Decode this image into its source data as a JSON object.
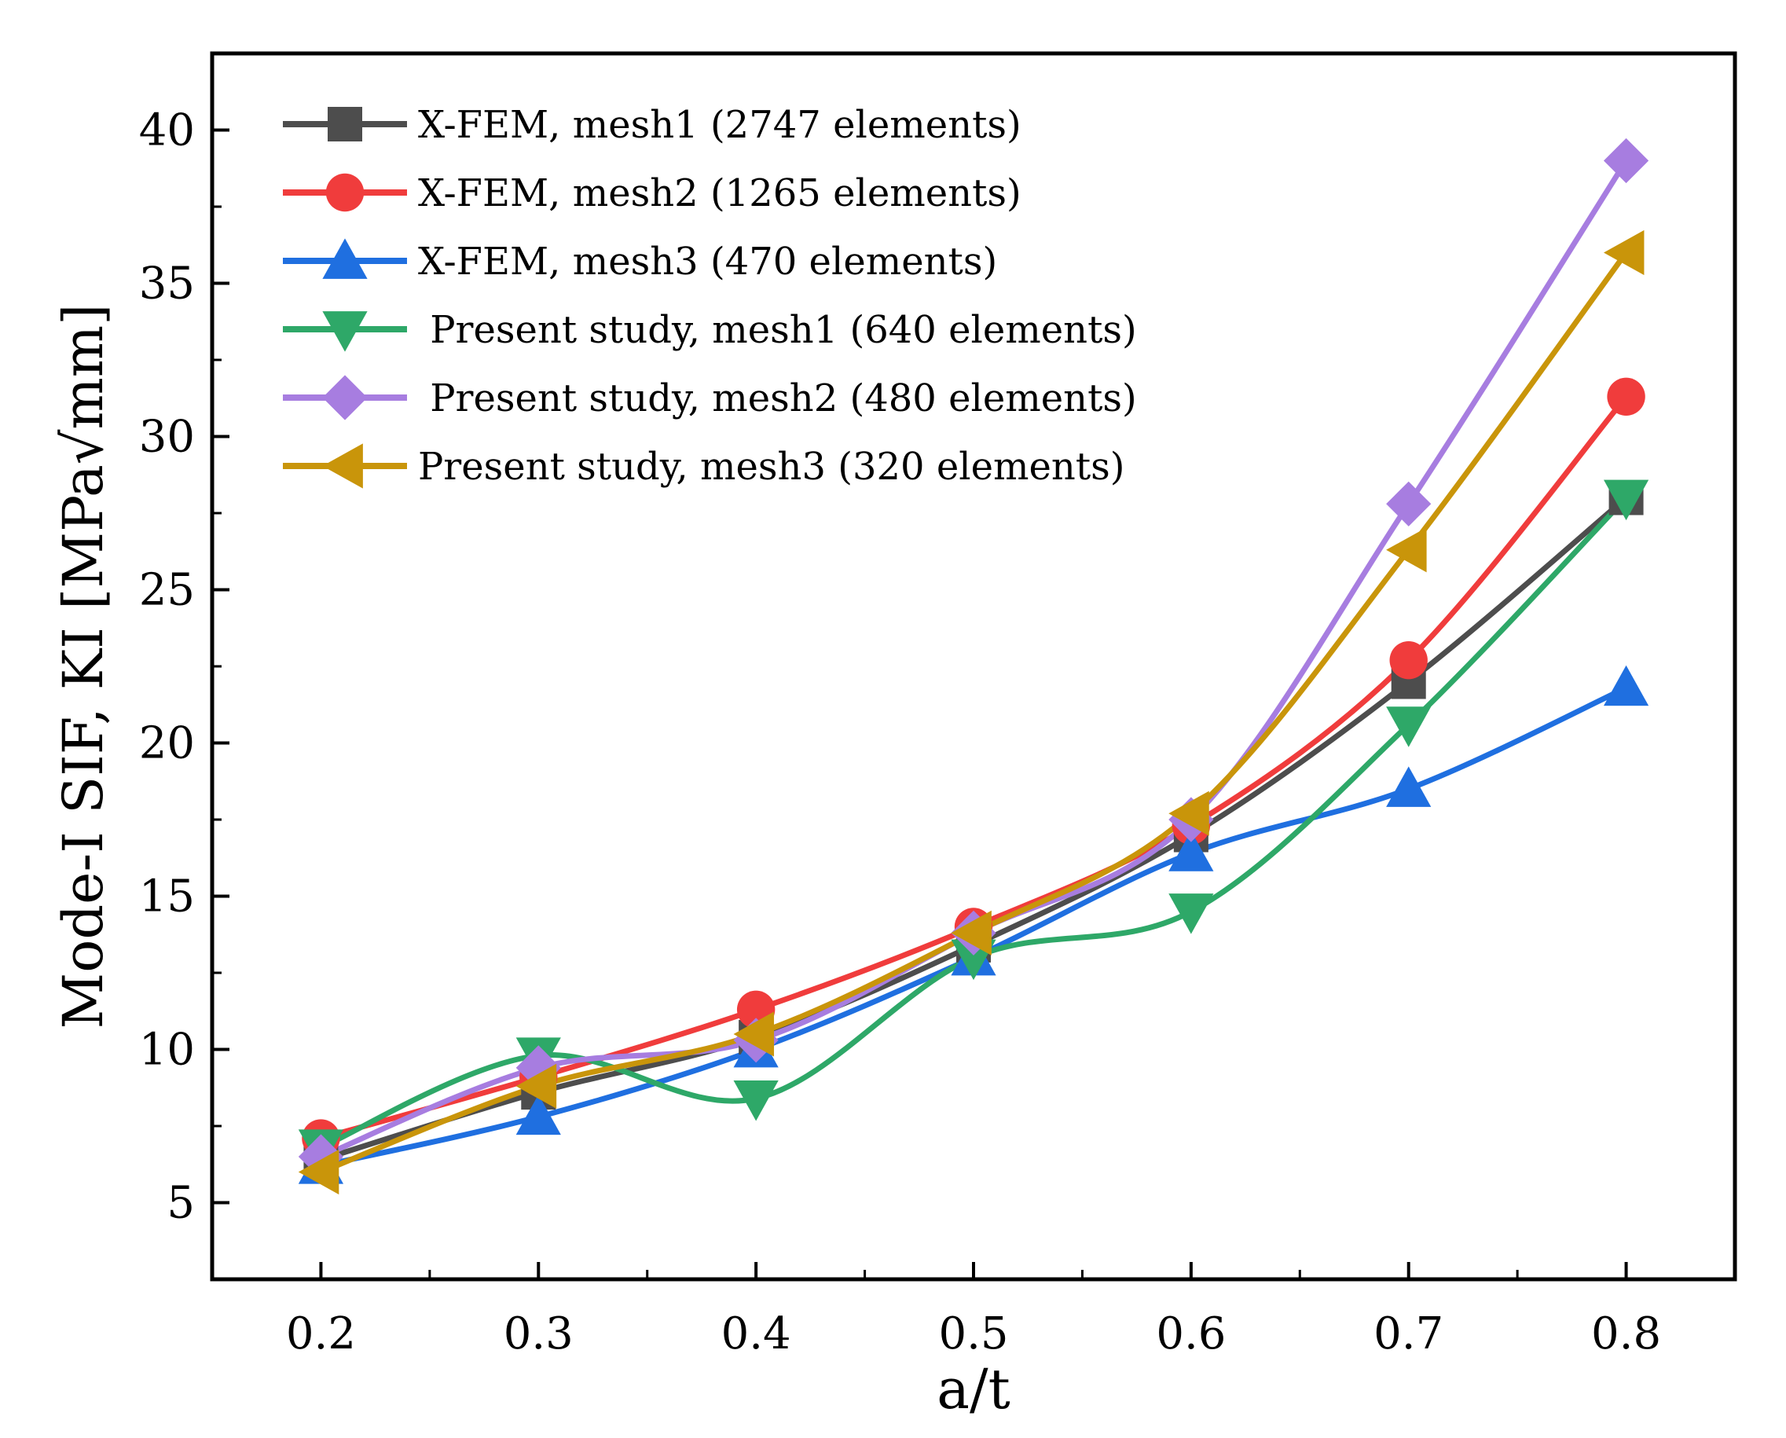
{
  "chart_data": {
    "type": "line",
    "title": "",
    "xlabel": "a/t",
    "ylabel": "Mode-I SIF, KI [MPa√mm]",
    "xlim": [
      0.15,
      0.85
    ],
    "ylim": [
      2.5,
      42.5
    ],
    "xticks": [
      0.2,
      0.3,
      0.4,
      0.5,
      0.6,
      0.7,
      0.8
    ],
    "xtick_labels": [
      "0.2",
      "0.3",
      "0.4",
      "0.5",
      "0.6",
      "0.7",
      "0.8"
    ],
    "yticks": [
      5,
      10,
      15,
      20,
      25,
      30,
      35,
      40
    ],
    "ytick_labels": [
      "5",
      "10",
      "15",
      "20",
      "25",
      "30",
      "35",
      "40"
    ],
    "legend_position": "top-left",
    "x": [
      0.2,
      0.3,
      0.4,
      0.5,
      0.6,
      0.7,
      0.8
    ],
    "series": [
      {
        "name": "X-FEM, mesh1 (2747 elements)",
        "marker": "square",
        "color": "#4d4d4d",
        "values": [
          6.4,
          8.6,
          10.4,
          13.4,
          17.0,
          22.0,
          28.0
        ]
      },
      {
        "name": "X-FEM, mesh2 (1265 elements)",
        "marker": "circle",
        "color": "#f03c3c",
        "values": [
          7.1,
          9.1,
          11.3,
          14.0,
          17.3,
          22.7,
          31.3
        ]
      },
      {
        "name": "X-FEM, mesh3 (470 elements)",
        "marker": "triangle-up",
        "color": "#1f6fe0",
        "values": [
          6.2,
          7.8,
          10.0,
          13.0,
          16.4,
          18.5,
          21.8
        ]
      },
      {
        "name": " Present study, mesh1 (640 elements)",
        "marker": "triangle-down",
        "color": "#2ea868",
        "values": [
          6.8,
          9.8,
          8.4,
          13.0,
          14.5,
          20.6,
          28.0
        ]
      },
      {
        "name": " Present study, mesh2 (480 elements)",
        "marker": "diamond",
        "color": "#a77de0",
        "values": [
          6.5,
          9.4,
          10.3,
          13.8,
          17.5,
          27.8,
          39.0
        ]
      },
      {
        "name": "Present study, mesh3 (320 elements)",
        "marker": "triangle-left",
        "color": "#c9950a",
        "values": [
          6.0,
          8.8,
          10.5,
          13.8,
          17.7,
          26.3,
          36.0
        ]
      }
    ]
  }
}
